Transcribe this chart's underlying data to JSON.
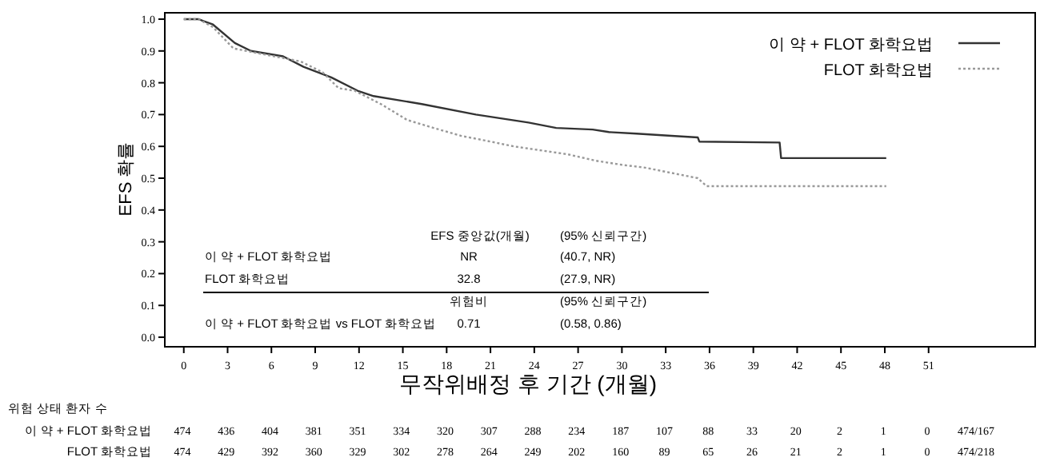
{
  "chart_data": {
    "type": "line",
    "xlabel": "무작위배정 후 기간 (개월)",
    "ylabel": "EFS 확률",
    "xlim": [
      -1.3,
      58.3
    ],
    "ylim": [
      -0.03,
      1.02
    ],
    "xticks": [
      0,
      3,
      6,
      9,
      12,
      15,
      18,
      21,
      24,
      27,
      30,
      33,
      36,
      39,
      42,
      45,
      48,
      51
    ],
    "yticks": [
      {
        "value": 0,
        "label": "0.0"
      },
      0.1,
      0.2,
      0.3,
      0.4,
      0.5,
      0.6,
      0.7,
      0.8,
      0.9,
      {
        "value": 1,
        "label": "1.0"
      }
    ],
    "legend": "top right",
    "grid": false,
    "series": [
      {
        "name": "이 약 + FLOT 화학요법",
        "color": "#333333",
        "line_style": "solid",
        "x": [
          0,
          1,
          2,
          3.5,
          4.6,
          6.8,
          8.2,
          10.1,
          11.9,
          13,
          16.3,
          20,
          23.6,
          25.5,
          28,
          29.1,
          31,
          33.4,
          35.2,
          35.3,
          40.8,
          40.9,
          48.1
        ],
        "values": [
          1.0,
          1.0,
          0.983,
          0.925,
          0.9,
          0.883,
          0.85,
          0.817,
          0.775,
          0.758,
          0.733,
          0.7,
          0.675,
          0.658,
          0.653,
          0.645,
          0.64,
          0.633,
          0.628,
          0.615,
          0.612,
          0.563,
          0.563
        ]
      },
      {
        "name": "FLOT 화학요법",
        "color": "#999999",
        "line_style": "dotted",
        "x": [
          0,
          1,
          2,
          3.4,
          6.2,
          8,
          9.5,
          10.6,
          11.7,
          13.5,
          15.3,
          17.1,
          19,
          20.8,
          22.6,
          26.3,
          28.2,
          30,
          31.6,
          35.2,
          35.8,
          48.1
        ],
        "values": [
          1.0,
          1.0,
          0.975,
          0.908,
          0.883,
          0.867,
          0.833,
          0.783,
          0.775,
          0.733,
          0.683,
          0.658,
          0.633,
          0.617,
          0.6,
          0.575,
          0.555,
          0.542,
          0.533,
          0.5,
          0.475,
          0.475
        ]
      }
    ],
    "annotations": [
      "EFS 중앙값(개월)",
      "(95% 신뢰구간)",
      "이 약 + FLOT 화학요법",
      "NR",
      "(40.7, NR)",
      "FLOT 화학요법",
      "32.8",
      "(27.9, NR)",
      "위험비",
      "(95% 신뢰구간)",
      "이 약 + FLOT 화학요법 vs FLOT 화학요법",
      "0.71",
      "(0.58, 0.86)",
      "위험 상태 환자 수",
      "이 약 + FLOT 화학요법",
      "FLOT 화학요법",
      "474 436 404 381 351 334 320 307 288 234 187 107 88 33 20 2 1 0 474/167",
      "474 429 392 360 329 302 278 264 249 202 160 89 65 26 21 2 1 0 474/218"
    ]
  }
}
